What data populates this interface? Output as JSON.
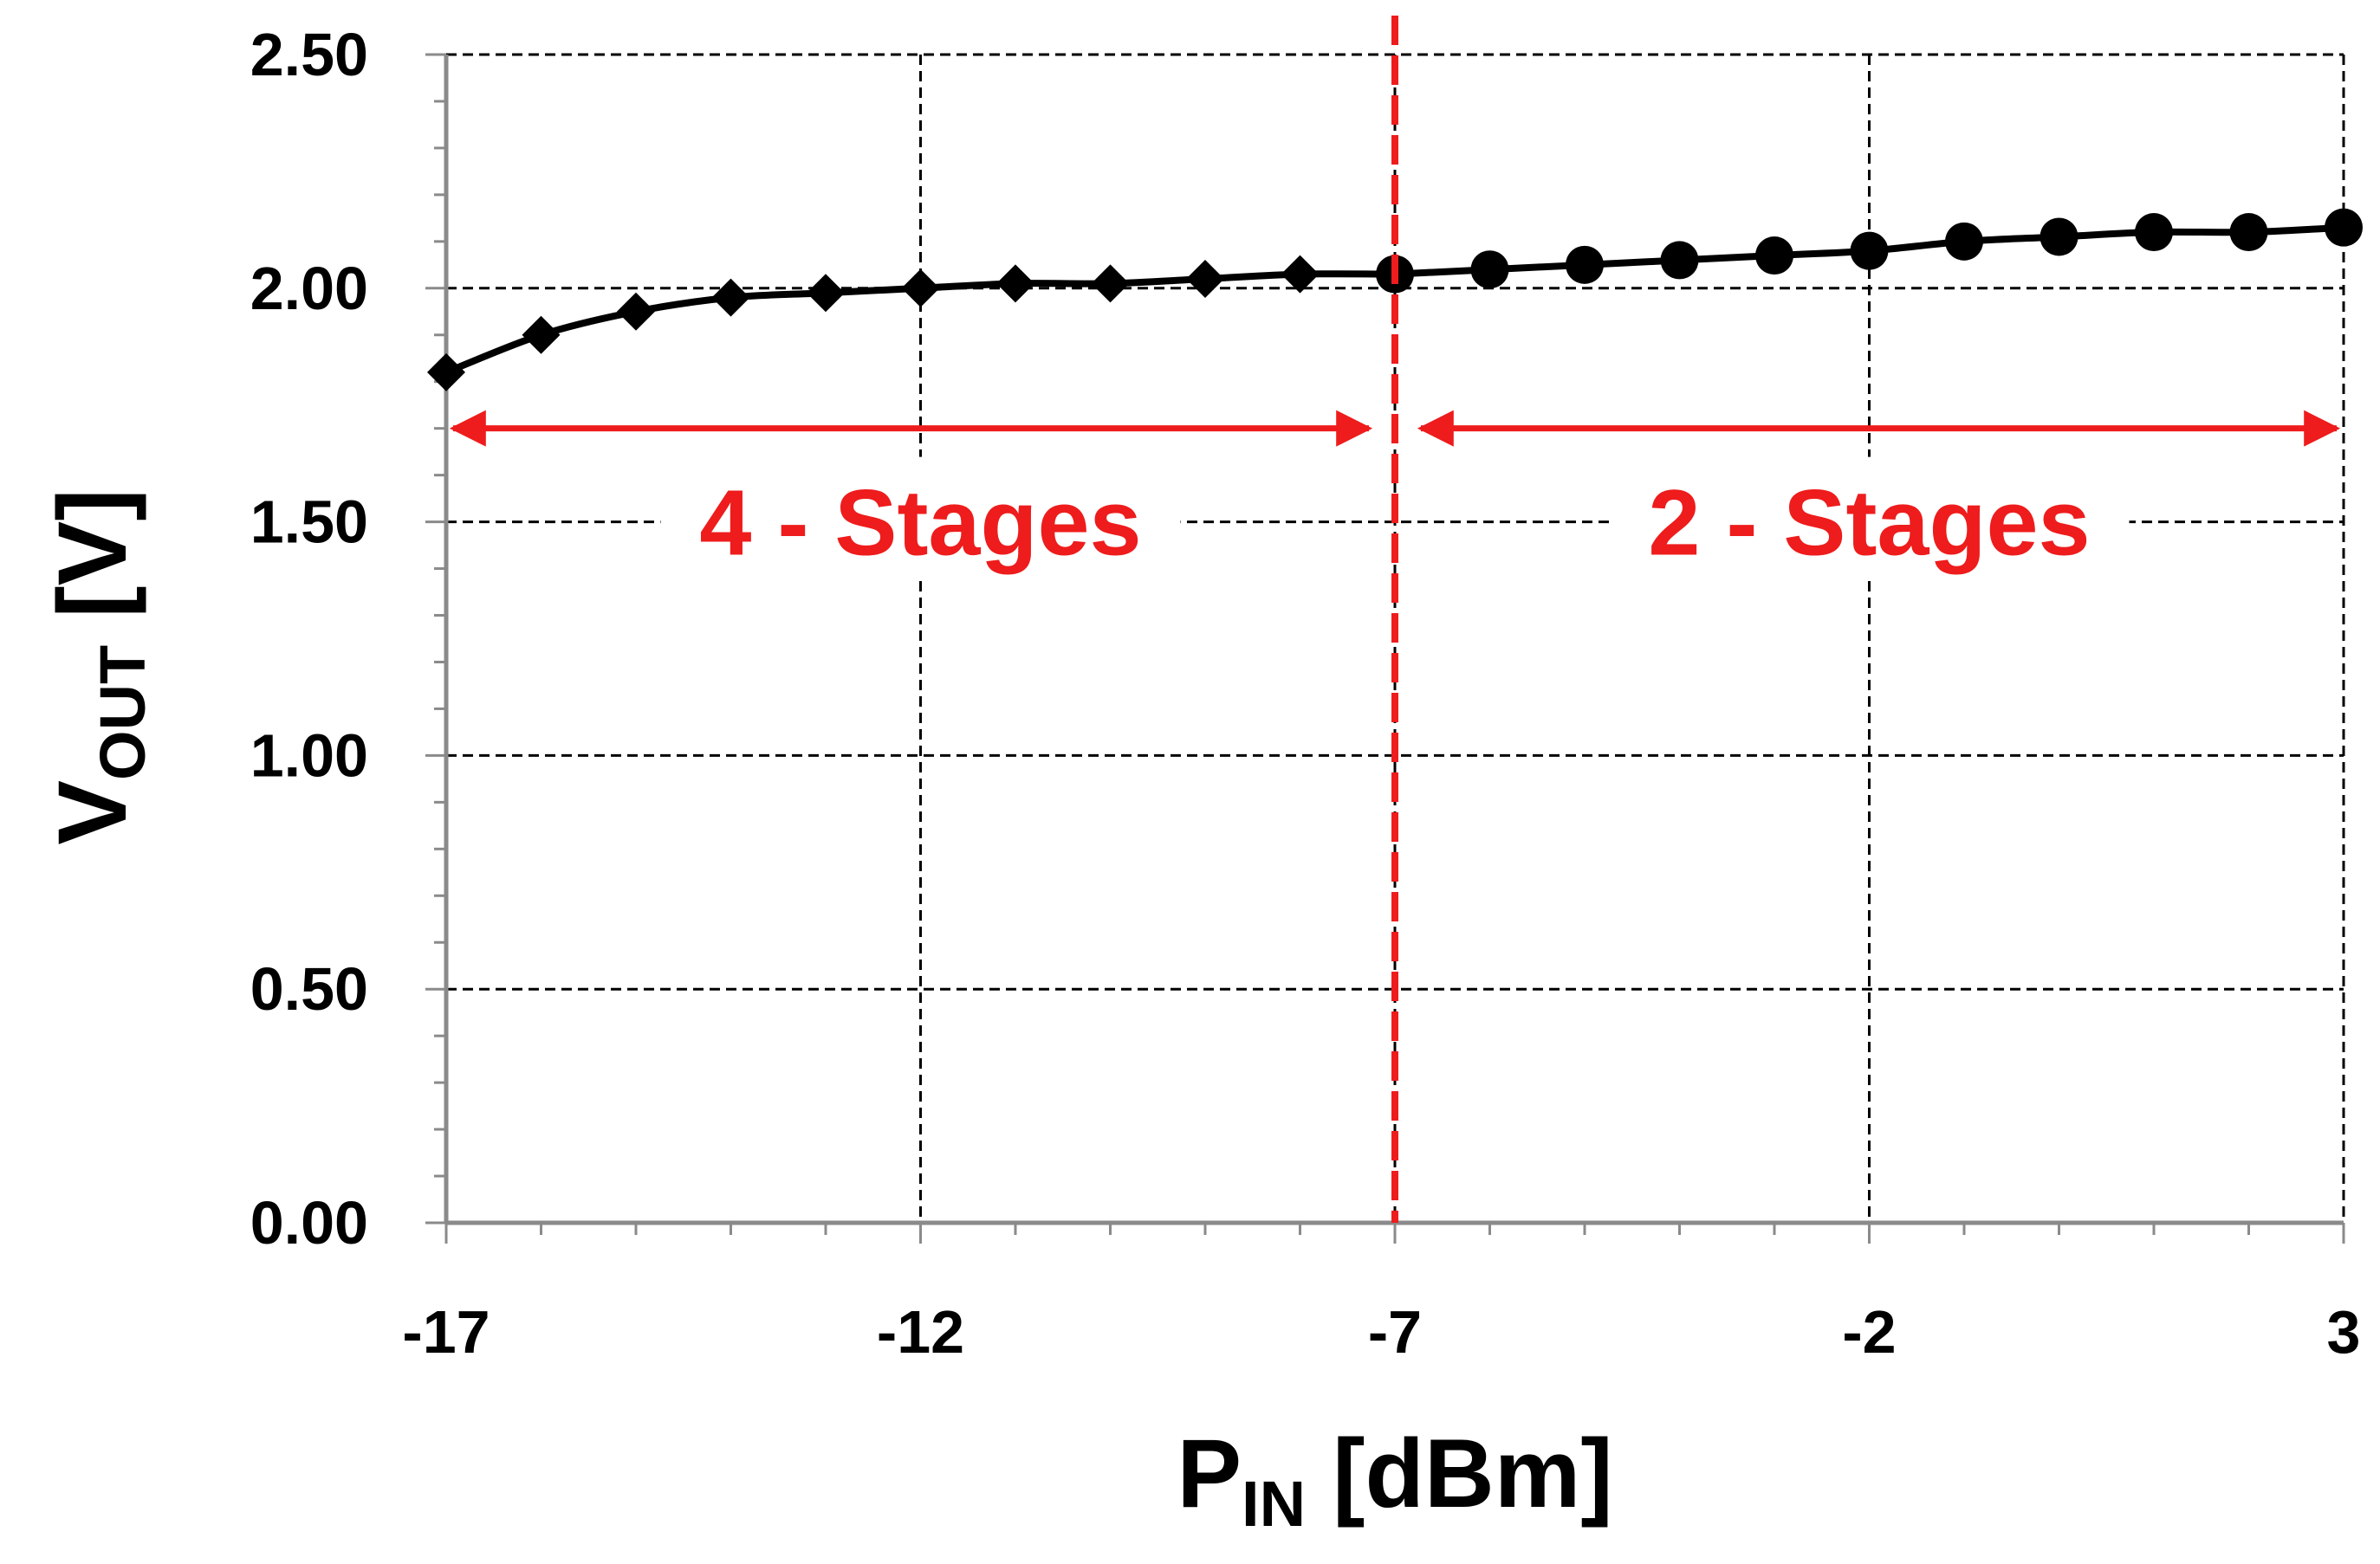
{
  "chart_data": {
    "type": "line",
    "xlabel": {
      "main": "P",
      "sub": "IN",
      "unit": " [dBm]"
    },
    "ylabel": {
      "main": "V",
      "sub": "OUT",
      "unit": " [V]"
    },
    "xlim": [
      -17,
      3
    ],
    "ylim": [
      0,
      2.5
    ],
    "x_ticks": [
      "-17",
      "-12",
      "-7",
      "-2",
      "3"
    ],
    "x_tick_values": [
      -17,
      -12,
      -7,
      -2,
      3
    ],
    "y_ticks": [
      "0.00",
      "0.50",
      "1.00",
      "1.50",
      "2.00",
      "2.50"
    ],
    "y_tick_values": [
      0,
      0.5,
      1.0,
      1.5,
      2.0,
      2.5
    ],
    "grid": true,
    "series": [
      {
        "marker": "diamond",
        "color": "#000000",
        "x": [
          -17,
          -16,
          -15,
          -14,
          -13,
          -12,
          -11,
          -10,
          -9,
          -8,
          -7
        ],
        "y": [
          1.82,
          1.9,
          1.95,
          1.98,
          1.99,
          2.0,
          2.01,
          2.01,
          2.02,
          2.03,
          2.03
        ]
      },
      {
        "marker": "circle",
        "color": "#000000",
        "x": [
          -7,
          -6,
          -5,
          -4,
          -3,
          -2,
          -1,
          0,
          1,
          2,
          3
        ],
        "y": [
          2.03,
          2.04,
          2.05,
          2.06,
          2.07,
          2.08,
          2.1,
          2.11,
          2.12,
          2.12,
          2.13
        ]
      }
    ],
    "threshold": {
      "x": -7,
      "color": "#ee1c1c"
    },
    "annotations": [
      {
        "text": "4 - Stages",
        "x_from": -17,
        "x_to": -7,
        "arrow_y": 1.7,
        "text_y": 1.5,
        "color": "#ee1c1c"
      },
      {
        "text": "2 - Stages",
        "x_from": -7,
        "x_to": 3,
        "arrow_y": 1.7,
        "text_y": 1.5,
        "color": "#ee1c1c"
      }
    ]
  }
}
